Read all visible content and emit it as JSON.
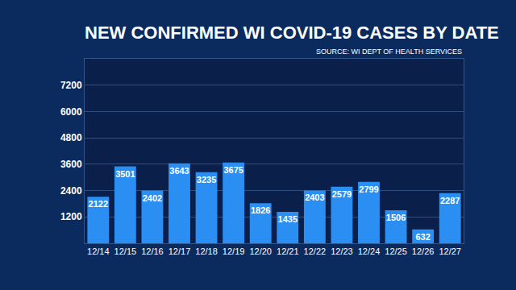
{
  "chart_data": {
    "type": "bar",
    "title": "NEW CONFIRMED WI COVID-19 CASES BY DATE",
    "subtitle": "SOURCE: WI DEPT OF HEALTH SERVICES",
    "categories": [
      "12/14",
      "12/15",
      "12/16",
      "12/17",
      "12/18",
      "12/19",
      "12/20",
      "12/21",
      "12/22",
      "12/23",
      "12/24",
      "12/25",
      "12/26",
      "12/27"
    ],
    "values": [
      2122,
      3501,
      2402,
      3643,
      3235,
      3675,
      1826,
      1435,
      2403,
      2579,
      2799,
      1506,
      632,
      2287
    ],
    "color": "#2a8ef2",
    "ylim": [
      0,
      8400
    ],
    "yticks": [
      1200,
      2400,
      3600,
      4800,
      6000,
      7200
    ],
    "grid": true,
    "data_labels": true
  }
}
